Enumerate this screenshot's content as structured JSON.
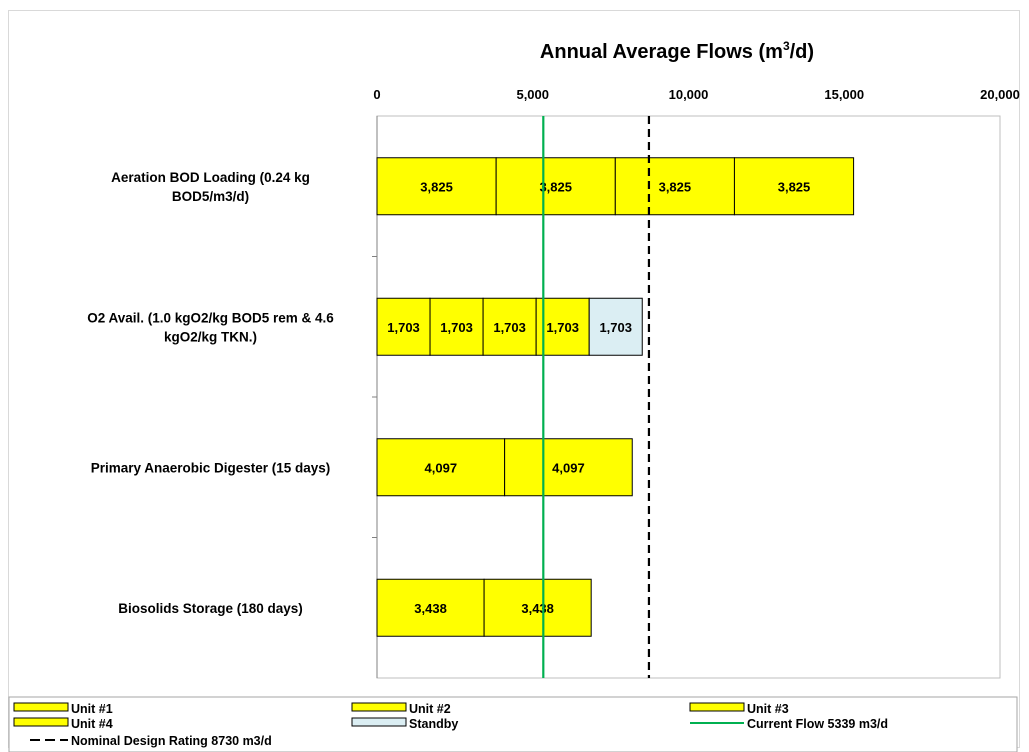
{
  "chart_data": {
    "type": "bar",
    "orientation": "horizontal",
    "stacked": true,
    "title": "Annual Average Flows (m³/d)",
    "title_main": "Annual Average Flows (m",
    "title_sup": "3",
    "title_end": "/d)",
    "xlim": [
      0,
      20000
    ],
    "x_ticks": [
      0,
      5000,
      10000,
      15000,
      20000
    ],
    "x_tick_labels": [
      "0",
      "5,000",
      "10,000",
      "15,000",
      "20,000"
    ],
    "categories": [
      {
        "lines": [
          "Aeration BOD Loading (0.24 kg",
          "BOD5/m3/d)"
        ]
      },
      {
        "lines": [
          "O2 Avail. (1.0 kgO2/kg BOD5 rem & 4.6",
          "kgO2/kg TKN.)"
        ]
      },
      {
        "lines": [
          "Primary Anaerobic Digester (15 days)"
        ]
      },
      {
        "lines": [
          "Biosolids Storage (180 days)"
        ]
      }
    ],
    "bars": [
      {
        "segments": [
          {
            "series": "Unit #1",
            "value": 3825,
            "label": "3,825"
          },
          {
            "series": "Unit #2",
            "value": 3825,
            "label": "3,825"
          },
          {
            "series": "Unit #3",
            "value": 3825,
            "label": "3,825"
          },
          {
            "series": "Unit #4",
            "value": 3825,
            "label": "3,825"
          }
        ]
      },
      {
        "segments": [
          {
            "series": "Unit #1",
            "value": 1703,
            "label": "1,703"
          },
          {
            "series": "Unit #2",
            "value": 1703,
            "label": "1,703"
          },
          {
            "series": "Unit #3",
            "value": 1703,
            "label": "1,703"
          },
          {
            "series": "Unit #4",
            "value": 1703,
            "label": "1,703"
          },
          {
            "series": "Standby",
            "value": 1703,
            "label": "1,703"
          }
        ]
      },
      {
        "segments": [
          {
            "series": "Unit #1",
            "value": 4097,
            "label": "4,097"
          },
          {
            "series": "Unit #2",
            "value": 4097,
            "label": "4,097"
          }
        ]
      },
      {
        "segments": [
          {
            "series": "Unit #1",
            "value": 3438,
            "label": "3,438"
          },
          {
            "series": "Unit #2",
            "value": 3438,
            "label": "3,438"
          }
        ]
      }
    ],
    "reference_lines": [
      {
        "name": "Current Flow 5339 m3/d",
        "value": 5339,
        "style": "solid",
        "color": "#00b050"
      },
      {
        "name": "Nominal Design Rating  8730 m3/d",
        "value": 8730,
        "style": "dashed",
        "color": "#000000"
      }
    ],
    "legend": {
      "position": "bottom",
      "items": [
        {
          "label": "Unit #1",
          "type": "box",
          "color": "#ffff00"
        },
        {
          "label": "Unit #2",
          "type": "box",
          "color": "#ffff00"
        },
        {
          "label": "Unit #3",
          "type": "box",
          "color": "#ffff00"
        },
        {
          "label": "Unit #4",
          "type": "box",
          "color": "#ffff00"
        },
        {
          "label": "Standby",
          "type": "box",
          "color": "#dbeef3"
        },
        {
          "label": "Current Flow 5339 m3/d",
          "type": "line",
          "color": "#00b050"
        },
        {
          "label": "Nominal Design Rating  8730 m3/d",
          "type": "dash",
          "color": "#000000"
        }
      ]
    },
    "colors": {
      "unit": "#ffff00",
      "standby": "#dbeef3",
      "current": "#00b050",
      "nominal": "#000000"
    },
    "grid": false
  }
}
